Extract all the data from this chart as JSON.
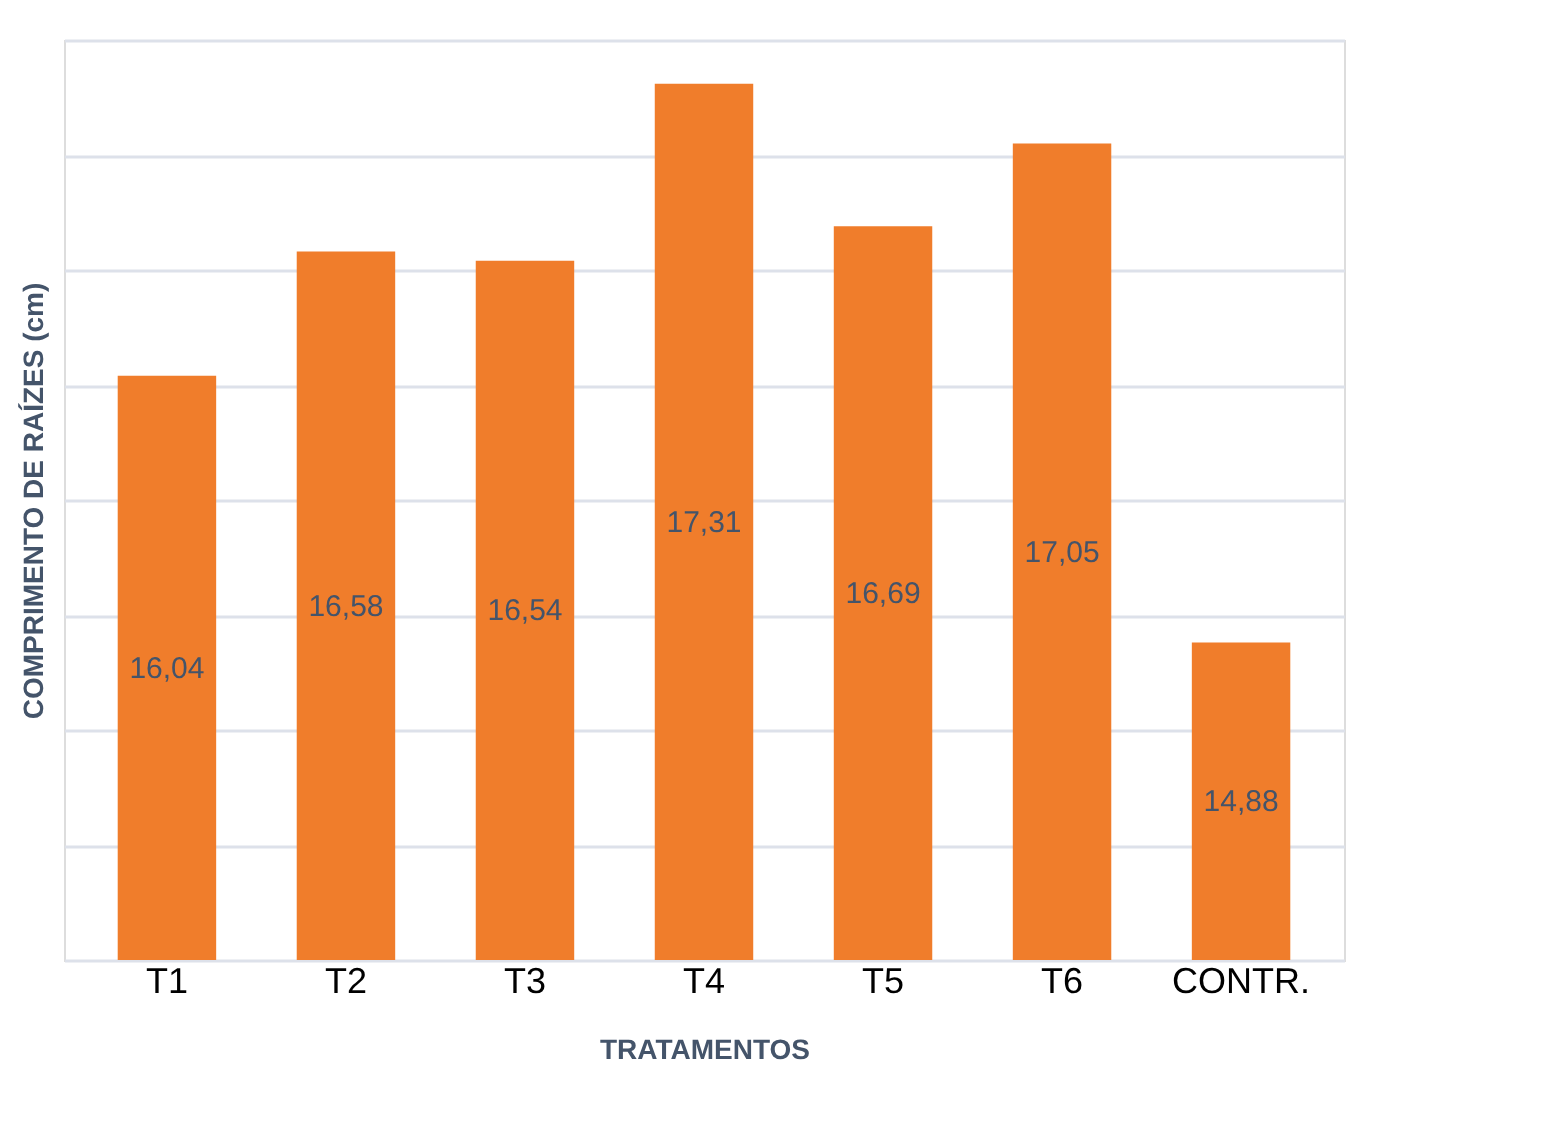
{
  "chart_data": {
    "type": "bar",
    "xlabel": "TRATAMENTOS",
    "ylabel": "COMPRIMENTO DE RAÍZES (cm)",
    "categories": [
      "T1",
      "T2",
      "T3",
      "T4",
      "T5",
      "T6",
      "CONTR."
    ],
    "values": [
      16.04,
      16.58,
      16.54,
      17.31,
      16.69,
      17.05,
      14.88
    ],
    "value_labels": [
      "16,04",
      "16,58",
      "16,54",
      "17,31",
      "16,69",
      "17,05",
      "14,88"
    ],
    "color": "#f07d2b",
    "ylim": [
      13.5,
      17.5
    ],
    "yticks": [
      {
        "value": 13.5,
        "label": null
      },
      {
        "value": 14,
        "label": null
      },
      {
        "value": 14.5,
        "label": null
      },
      {
        "value": 15,
        "label": null
      },
      {
        "value": 15.5,
        "label": null
      },
      {
        "value": 16,
        "label": null
      },
      {
        "value": 16.5,
        "label": null
      },
      {
        "value": 17,
        "label": null
      },
      {
        "value": 17.5,
        "label": null
      }
    ],
    "grid": "y",
    "tick_labels": "x"
  }
}
